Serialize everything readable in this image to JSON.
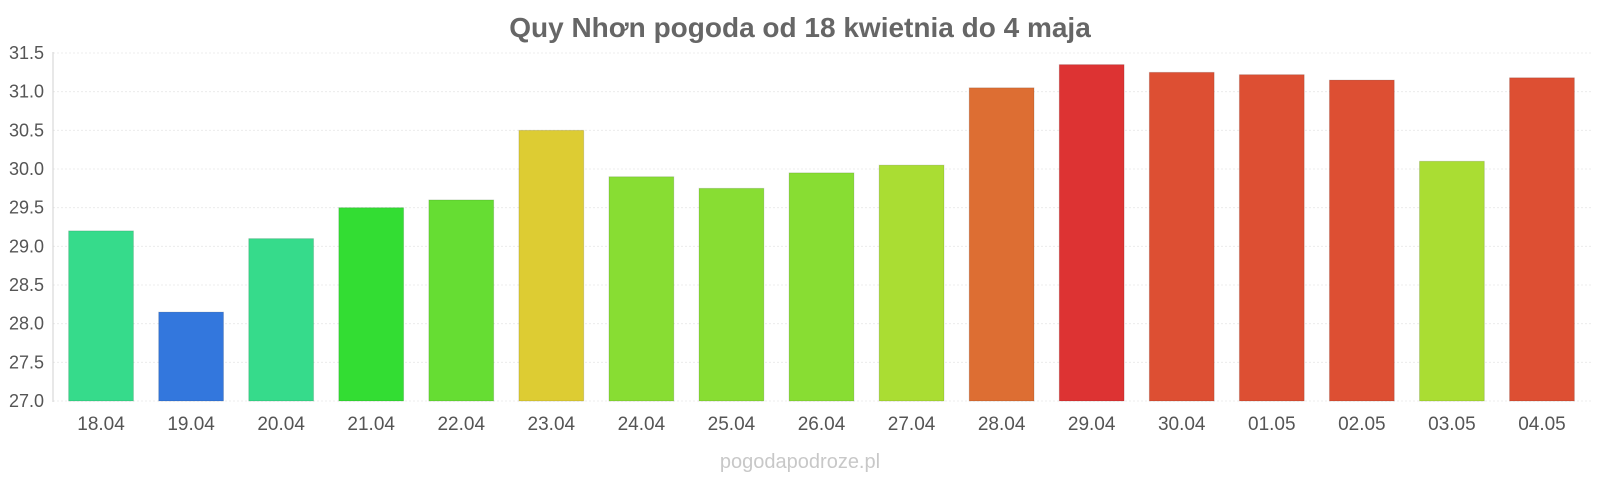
{
  "chart_data": {
    "type": "bar",
    "title": "Quy Nhơn pogoda od 18 kwietnia do 4 maja",
    "categories": [
      "18.04",
      "19.04",
      "20.04",
      "21.04",
      "22.04",
      "23.04",
      "24.04",
      "25.04",
      "26.04",
      "27.04",
      "28.04",
      "29.04",
      "30.04",
      "01.05",
      "02.05",
      "03.05",
      "04.05"
    ],
    "values": [
      29.2,
      28.15,
      29.1,
      29.5,
      29.6,
      30.5,
      29.9,
      29.75,
      29.95,
      30.05,
      31.05,
      31.35,
      31.25,
      31.22,
      31.15,
      30.1,
      31.18
    ],
    "colors": [
      "#36db8b",
      "#3377dd",
      "#36db8b",
      "#33dd33",
      "#66dd33",
      "#ddcc33",
      "#88dd33",
      "#88dd33",
      "#88dd33",
      "#aadd33",
      "#dd6e33",
      "#dd3333",
      "#dd4f33",
      "#dd4f33",
      "#dd4f33",
      "#aadd33",
      "#dd4f33"
    ],
    "ylim": [
      27.0,
      31.5
    ],
    "yticks": [
      "27.0",
      "27.5",
      "28.0",
      "28.5",
      "29.0",
      "29.5",
      "30.0",
      "30.5",
      "31.0",
      "31.5"
    ],
    "grid": true,
    "xlabel": "",
    "ylabel": ""
  },
  "watermark": "pogodapodroze.pl"
}
